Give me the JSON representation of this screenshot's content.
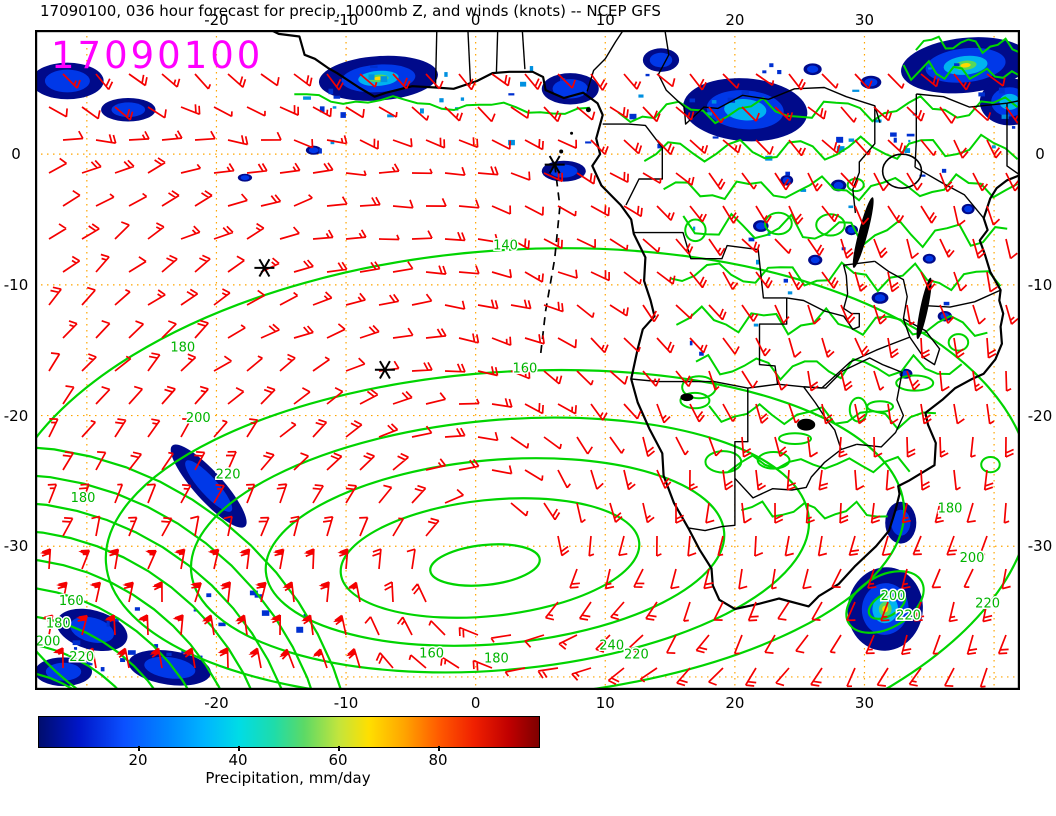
{
  "title": "17090100, 036 hour forecast for precip, 1000mb Z, and winds (knots) -- NCEP GFS",
  "overlay": {
    "timestamp": "17090100"
  },
  "colors": {
    "timestamp": "#ff00ff",
    "wind_barbs": "#f40000",
    "contours": "#00d400",
    "contour_label": "#00b400",
    "grid": "#ffa500",
    "coastline": "#000000"
  },
  "axes": {
    "x_ticks": [
      "-20",
      "-10",
      "0",
      "10",
      "20",
      "30"
    ],
    "x_tick_values": [
      -20,
      -10,
      0,
      10,
      20,
      30
    ],
    "y_ticks": [
      "0",
      "-10",
      "-20",
      "-30"
    ],
    "y_tick_values": [
      0,
      -10,
      -20,
      -30
    ]
  },
  "colorbar": {
    "label": "Precipitation, mm/day",
    "ticks": [
      "20",
      "40",
      "60",
      "80"
    ],
    "tick_values": [
      20,
      40,
      60,
      80
    ],
    "range": [
      0,
      100
    ],
    "stops": [
      [
        0,
        "#000d6e"
      ],
      [
        0.08,
        "#0016c8"
      ],
      [
        0.17,
        "#0b50ff"
      ],
      [
        0.26,
        "#0087ff"
      ],
      [
        0.33,
        "#00b4ff"
      ],
      [
        0.4,
        "#00dce6"
      ],
      [
        0.47,
        "#1edcaa"
      ],
      [
        0.53,
        "#5cd966"
      ],
      [
        0.6,
        "#c3e53c"
      ],
      [
        0.66,
        "#ffdf00"
      ],
      [
        0.73,
        "#ffa500"
      ],
      [
        0.8,
        "#ff5a00"
      ],
      [
        0.87,
        "#f02000"
      ],
      [
        0.94,
        "#c00000"
      ],
      [
        1,
        "#7e0000"
      ]
    ]
  },
  "chart_data": {
    "type": "heatmap",
    "subtype": "weather-map",
    "title": "17090100, 036 hour forecast for precip, 1000mb Z, and winds (knots) -- NCEP GFS",
    "init_time": "17090100",
    "forecast_hour": "036",
    "model": "NCEP GFS",
    "region": "South Atlantic and Southern Africa",
    "proj": {
      "lon_min": -34,
      "lon_max": 42,
      "lat_min": -41,
      "lat_max": 9.5
    },
    "x_axis": {
      "label": "longitude",
      "tick_values": [
        -20,
        -10,
        0,
        10,
        20,
        30
      ]
    },
    "y_axis": {
      "label": "latitude",
      "tick_values": [
        0,
        -10,
        -20,
        -30
      ]
    },
    "grid": {
      "on": true,
      "style": "dotted",
      "color": "#ffa500",
      "interval_deg": 10
    },
    "layers": [
      {
        "name": "precipitation",
        "style": "filled shading",
        "units": "mm/day",
        "scale_ticks": [
          20,
          40,
          60,
          80
        ],
        "scale_range": [
          0,
          100
        ]
      },
      {
        "name": "1000mb geopotential height",
        "style": "contours",
        "color": "#00d400",
        "labeled_levels": [
          140,
          160,
          180,
          200,
          220,
          240
        ],
        "high_center": {
          "lon": 0.5,
          "lat": -31
        }
      },
      {
        "name": "wind",
        "style": "barbs",
        "units": "knots",
        "color": "#f40000"
      }
    ],
    "contour_labels": [
      {
        "text": "140",
        "lon": 2.3,
        "lat": -7.3
      },
      {
        "text": "160",
        "lon": 3.8,
        "lat": -16.7
      },
      {
        "text": "180",
        "lon": -22.6,
        "lat": -15.1
      },
      {
        "text": "200",
        "lon": -21.4,
        "lat": -20.5
      },
      {
        "text": "220",
        "lon": -19.1,
        "lat": -24.8
      },
      {
        "text": "180",
        "lon": -30.3,
        "lat": -26.6
      },
      {
        "text": "160",
        "lon": -31.2,
        "lat": -34.5
      },
      {
        "text": "180",
        "lon": -32.2,
        "lat": -36.2
      },
      {
        "text": "200",
        "lon": -33.0,
        "lat": -37.6
      },
      {
        "text": "220",
        "lon": -30.4,
        "lat": -38.8
      },
      {
        "text": "240",
        "lon": 10.5,
        "lat": -37.9
      },
      {
        "text": "220",
        "lon": 12.4,
        "lat": -38.6
      },
      {
        "text": "160",
        "lon": -3.4,
        "lat": -38.5
      },
      {
        "text": "180",
        "lon": 1.6,
        "lat": -38.9
      },
      {
        "text": "180",
        "lon": 36.6,
        "lat": -27.4
      },
      {
        "text": "200",
        "lon": 38.3,
        "lat": -31.2
      },
      {
        "text": "220",
        "lon": 39.5,
        "lat": -34.7
      },
      {
        "text": "200",
        "lon": 32.2,
        "lat": -34.1
      },
      {
        "text": "220",
        "lon": 33.4,
        "lat": -35.6
      }
    ],
    "markers": [
      {
        "symbol": "*",
        "lon": 6.1,
        "lat": -0.8
      },
      {
        "symbol": "*",
        "lon": -16.3,
        "lat": -8.7
      },
      {
        "symbol": "*",
        "lon": -7.0,
        "lat": -16.5
      }
    ],
    "track": {
      "style": "dashed",
      "points": [
        [
          6.1,
          -0.8
        ],
        [
          6.5,
          -4.0
        ],
        [
          6.1,
          -8.0
        ],
        [
          5.4,
          -12.0
        ],
        [
          5.0,
          -15.4
        ]
      ]
    },
    "precip_areas": [
      {
        "lon": -7.5,
        "lat": 5.8,
        "rx": 4.6,
        "ry": 1.7,
        "rot": -4,
        "core": true,
        "rainbow": true
      },
      {
        "lon": 7.3,
        "lat": 5.0,
        "rx": 2.2,
        "ry": 1.2
      },
      {
        "lon": 20.8,
        "lat": 3.4,
        "rx": 4.8,
        "ry": 2.4,
        "rot": 4,
        "core": true
      },
      {
        "lon": 37.8,
        "lat": 6.8,
        "rx": 5.0,
        "ry": 2.1,
        "rot": -6,
        "core": true,
        "rainbow": true
      },
      {
        "lon": 41.2,
        "lat": 4.0,
        "rx": 2.3,
        "ry": 1.8,
        "core": true
      },
      {
        "lon": -31.5,
        "lat": 5.6,
        "rx": 2.8,
        "ry": 1.4
      },
      {
        "lon": -26.8,
        "lat": 3.4,
        "rx": 2.1,
        "ry": 0.9
      },
      {
        "lon": 14.3,
        "lat": 7.2,
        "rx": 1.4,
        "ry": 0.9
      },
      {
        "lon": 6.8,
        "lat": -1.3,
        "rx": 1.7,
        "ry": 0.8
      },
      {
        "lon": -20.6,
        "lat": -25.4,
        "rx": 4.2,
        "ry": 1.1,
        "rot": 48
      },
      {
        "lon": -29.6,
        "lat": -36.4,
        "rx": 2.8,
        "ry": 1.5,
        "rot": 15
      },
      {
        "lon": -23.6,
        "lat": -39.3,
        "rx": 3.2,
        "ry": 1.3,
        "rot": 8
      },
      {
        "lon": -31.8,
        "lat": -39.6,
        "rx": 2.2,
        "ry": 1.1
      },
      {
        "lon": 31.6,
        "lat": -34.8,
        "rx": 2.9,
        "ry": 3.2,
        "rot": 8,
        "core": true,
        "rainbow": true
      },
      {
        "lon": 32.8,
        "lat": -28.2,
        "rx": 1.2,
        "ry": 1.6
      },
      {
        "lon": 22.0,
        "lat": -5.5,
        "rx": 0.6,
        "ry": 0.45
      },
      {
        "lon": 26.2,
        "lat": -8.1,
        "rx": 0.55,
        "ry": 0.4
      },
      {
        "lon": 29.0,
        "lat": -5.8,
        "rx": 0.5,
        "ry": 0.4
      },
      {
        "lon": 31.2,
        "lat": -11.0,
        "rx": 0.65,
        "ry": 0.45
      },
      {
        "lon": 35.0,
        "lat": -8.0,
        "rx": 0.5,
        "ry": 0.38
      },
      {
        "lon": 28.0,
        "lat": -2.4,
        "rx": 0.6,
        "ry": 0.45
      },
      {
        "lon": 36.2,
        "lat": -12.4,
        "rx": 0.55,
        "ry": 0.4
      },
      {
        "lon": 33.2,
        "lat": -16.8,
        "rx": 0.5,
        "ry": 0.38
      },
      {
        "lon": 38.0,
        "lat": -4.2,
        "rx": 0.5,
        "ry": 0.4
      },
      {
        "lon": 24.0,
        "lat": -2.0,
        "rx": 0.5,
        "ry": 0.4
      },
      {
        "lon": -12.5,
        "lat": 0.3,
        "rx": 0.6,
        "ry": 0.35
      },
      {
        "lon": -17.8,
        "lat": -1.8,
        "rx": 0.55,
        "ry": 0.3
      },
      {
        "lon": 30.5,
        "lat": 5.5,
        "rx": 0.8,
        "ry": 0.5
      },
      {
        "lon": 26.0,
        "lat": 6.5,
        "rx": 0.7,
        "ry": 0.45
      }
    ]
  }
}
